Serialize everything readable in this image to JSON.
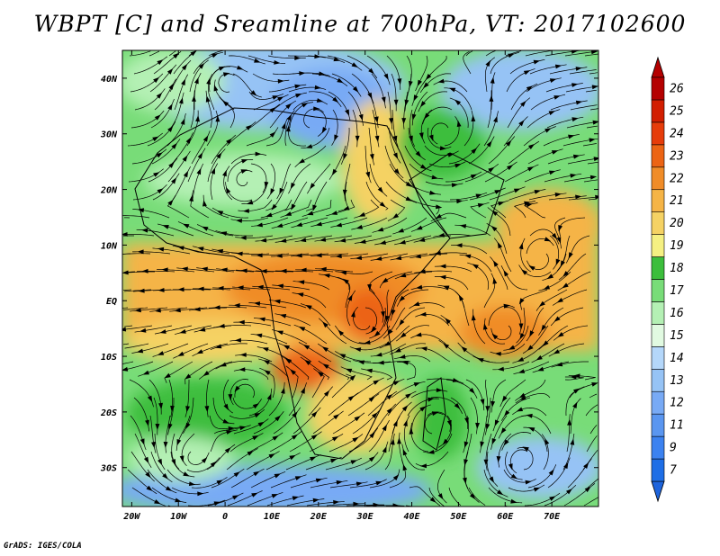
{
  "title": "WBPT [C] and Sreamline at 700hPa, VT: 2017102600",
  "credit": "GrADS: IGES/COLA",
  "map": {
    "lon_labels": [
      "20W",
      "10W",
      "0",
      "10E",
      "20E",
      "30E",
      "40E",
      "50E",
      "60E",
      "70E"
    ],
    "lon_values": [
      -20,
      -10,
      0,
      10,
      20,
      30,
      40,
      50,
      60,
      70
    ],
    "lat_labels": [
      "40N",
      "30N",
      "20N",
      "10N",
      "EQ",
      "10S",
      "20S",
      "30S"
    ],
    "lat_values": [
      40,
      30,
      20,
      10,
      0,
      -10,
      -20,
      -30
    ],
    "lon_range": [
      -22,
      80
    ],
    "lat_range": [
      -37,
      45
    ],
    "streamline_color": "#000000",
    "frame_color": "#000000"
  },
  "colorbar": {
    "labels": [
      "7",
      "9",
      "11",
      "12",
      "13",
      "14",
      "15",
      "16",
      "17",
      "18",
      "19",
      "20",
      "21",
      "22",
      "23",
      "24",
      "25",
      "26"
    ],
    "colors": [
      "#1e6ee6",
      "#3c82f0",
      "#5a96f0",
      "#78aaf5",
      "#96c3f5",
      "#b4d7fa",
      "#e1fae1",
      "#b4f0b4",
      "#78dc78",
      "#3cbe3c",
      "#f5f082",
      "#f5d264",
      "#f5b446",
      "#f08c28",
      "#ec6414",
      "#e63c0a",
      "#d21e00",
      "#b40000"
    ],
    "under_color": "#1e64dc",
    "over_color": "#b40000"
  }
}
